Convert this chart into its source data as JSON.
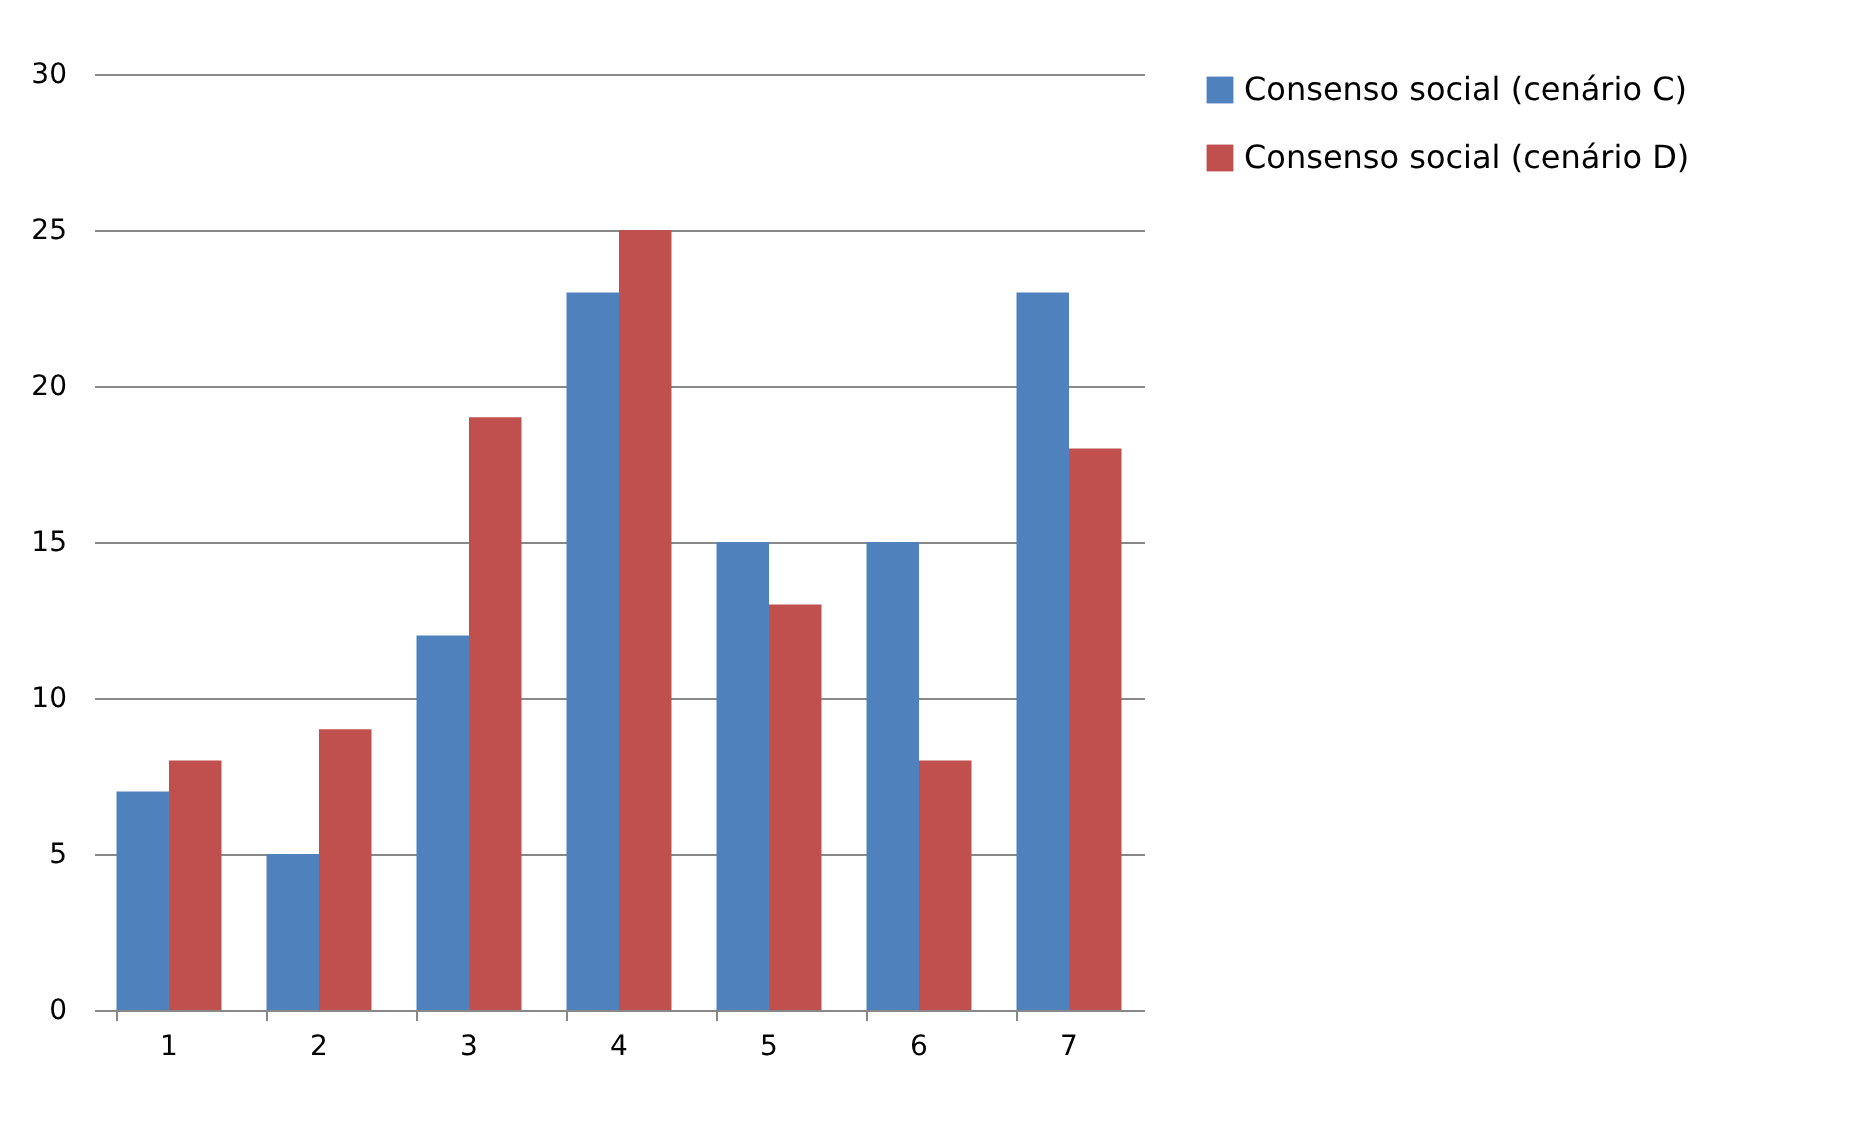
{
  "chart_data": {
    "type": "bar",
    "categories": [
      "1",
      "2",
      "3",
      "4",
      "5",
      "6",
      "7"
    ],
    "series": [
      {
        "name": "Consenso social (cenário C)",
        "color": "#4f81bd",
        "values": [
          7,
          5,
          12,
          23,
          15,
          15,
          23
        ]
      },
      {
        "name": "Consenso social (cenário D)",
        "color": "#c0504d",
        "values": [
          8,
          9,
          19,
          25,
          13,
          8,
          18
        ]
      }
    ],
    "ylim": [
      0,
      30
    ],
    "yticks": [
      0,
      5,
      10,
      15,
      20,
      25,
      30
    ],
    "grid": "y",
    "legend": "right"
  }
}
